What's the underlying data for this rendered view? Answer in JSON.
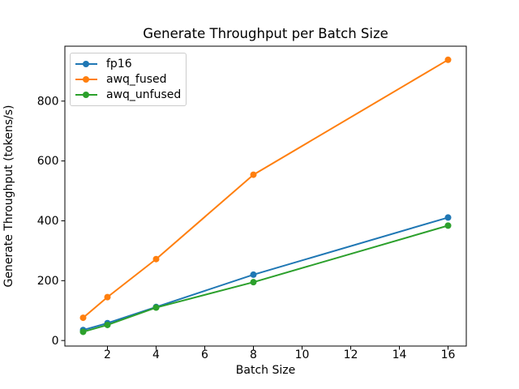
{
  "chart_data": {
    "type": "line",
    "title": "Generate Throughput per Batch Size",
    "xlabel": "Batch Size",
    "ylabel": "Generate Throughput (tokens/s)",
    "x": [
      1,
      2,
      4,
      8,
      16
    ],
    "series": [
      {
        "name": "fp16",
        "color": "#1f77b4",
        "values": [
          35,
          58,
          112,
          220,
          411
        ]
      },
      {
        "name": "awq_fused",
        "color": "#ff7f0e",
        "values": [
          76,
          145,
          272,
          554,
          938
        ]
      },
      {
        "name": "awq_unfused",
        "color": "#2ca02c",
        "values": [
          29,
          52,
          110,
          195,
          384
        ]
      }
    ],
    "xticks": [
      2,
      4,
      6,
      8,
      10,
      12,
      14,
      16
    ],
    "yticks": [
      0,
      200,
      400,
      600,
      800
    ],
    "xlim": [
      0.25,
      16.75
    ],
    "ylim": [
      -18.5,
      983.5
    ],
    "grid": false,
    "legend_position": "upper left",
    "axis_color": "#000000",
    "background_color": "#ffffff"
  }
}
